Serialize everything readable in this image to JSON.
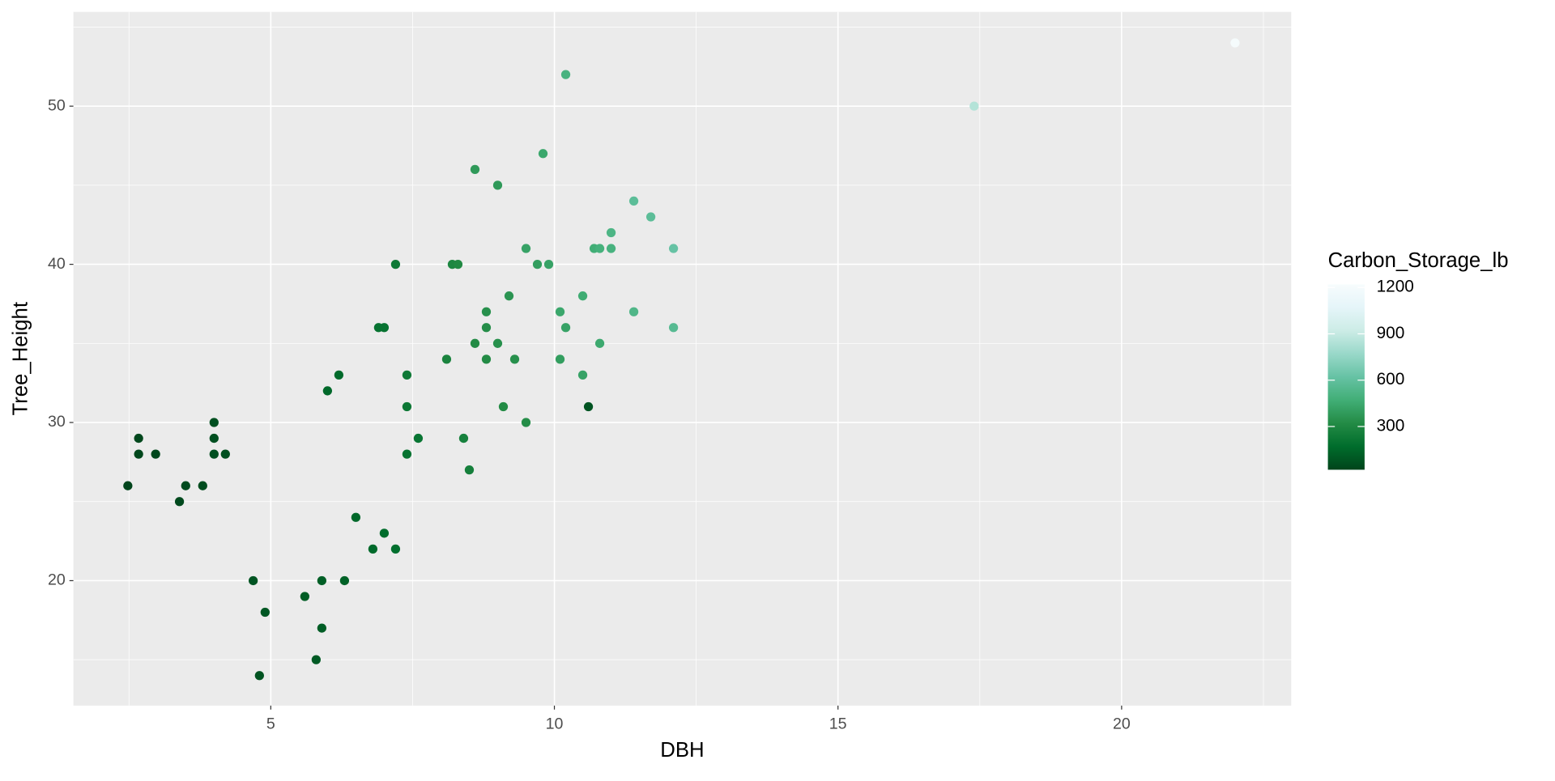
{
  "chart_data": {
    "type": "scatter",
    "x_label": "DBH",
    "y_label": "Tree_Height",
    "color_label": "Carbon_Storage_lb",
    "x": [
      2.48,
      2.67,
      2.67,
      2.97,
      3.39,
      3.5,
      3.8,
      4.0,
      4.0,
      4.0,
      4.2,
      4.69,
      4.8,
      4.9,
      5.6,
      5.8,
      5.9,
      5.9,
      6.0,
      6.2,
      6.3,
      6.5,
      6.8,
      6.9,
      7.0,
      7.0,
      7.2,
      7.2,
      7.4,
      7.4,
      7.4,
      7.6,
      8.1,
      8.2,
      8.3,
      8.4,
      8.5,
      8.6,
      8.6,
      8.8,
      8.8,
      8.8,
      9.0,
      9.0,
      9.1,
      9.2,
      9.3,
      9.5,
      9.5,
      9.7,
      9.8,
      9.9,
      10.1,
      10.1,
      10.2,
      10.2,
      10.5,
      10.5,
      10.6,
      10.7,
      10.8,
      10.8,
      11.0,
      11.0,
      11.4,
      11.4,
      11.7,
      12.1,
      12.1,
      17.4,
      22.0
    ],
    "y": [
      26,
      29,
      28,
      28,
      25,
      26,
      26,
      30,
      29,
      28,
      28,
      20,
      14,
      18,
      19,
      15,
      20,
      17,
      32,
      33,
      20,
      24,
      22,
      36,
      36,
      23,
      40,
      22,
      33,
      31,
      28,
      29,
      34,
      40,
      40,
      29,
      27,
      35,
      46,
      37,
      36,
      34,
      45,
      35,
      31,
      38,
      34,
      41,
      30,
      40,
      47,
      40,
      37,
      34,
      52,
      36,
      38,
      33,
      31,
      41,
      41,
      35,
      42,
      41,
      44,
      37,
      43,
      41,
      36,
      50,
      54
    ],
    "color_values": [
      25,
      30,
      30,
      35,
      40,
      45,
      50,
      60,
      60,
      60,
      65,
      80,
      75,
      90,
      110,
      100,
      120,
      110,
      150,
      160,
      130,
      150,
      160,
      200,
      200,
      170,
      230,
      180,
      230,
      220,
      200,
      210,
      280,
      300,
      310,
      270,
      260,
      320,
      380,
      340,
      330,
      320,
      380,
      340,
      320,
      360,
      340,
      420,
      330,
      400,
      440,
      420,
      440,
      400,
      500,
      420,
      460,
      420,
      80,
      470,
      490,
      450,
      520,
      500,
      580,
      530,
      580,
      620,
      560,
      850,
      1200
    ],
    "xlim": [
      1.52,
      22.99
    ],
    "ylim": [
      12.1,
      55.96
    ],
    "xticks": [
      5,
      10,
      15,
      20
    ],
    "yticks": [
      20,
      30,
      40,
      50
    ],
    "xminor": [
      2.5,
      7.5,
      12.5,
      17.5,
      22.5
    ],
    "yminor": [
      15,
      25,
      35,
      45,
      55
    ],
    "colorlim": [
      20,
      1220
    ],
    "color_ticks": [
      300,
      600,
      900,
      1200
    ],
    "palette": [
      "#00441B",
      "#006D2C",
      "#238B45",
      "#41AE76",
      "#66C2A4",
      "#99D8C9",
      "#CCECE6",
      "#E5F5F9",
      "#F7FCFD"
    ],
    "grid": true
  }
}
